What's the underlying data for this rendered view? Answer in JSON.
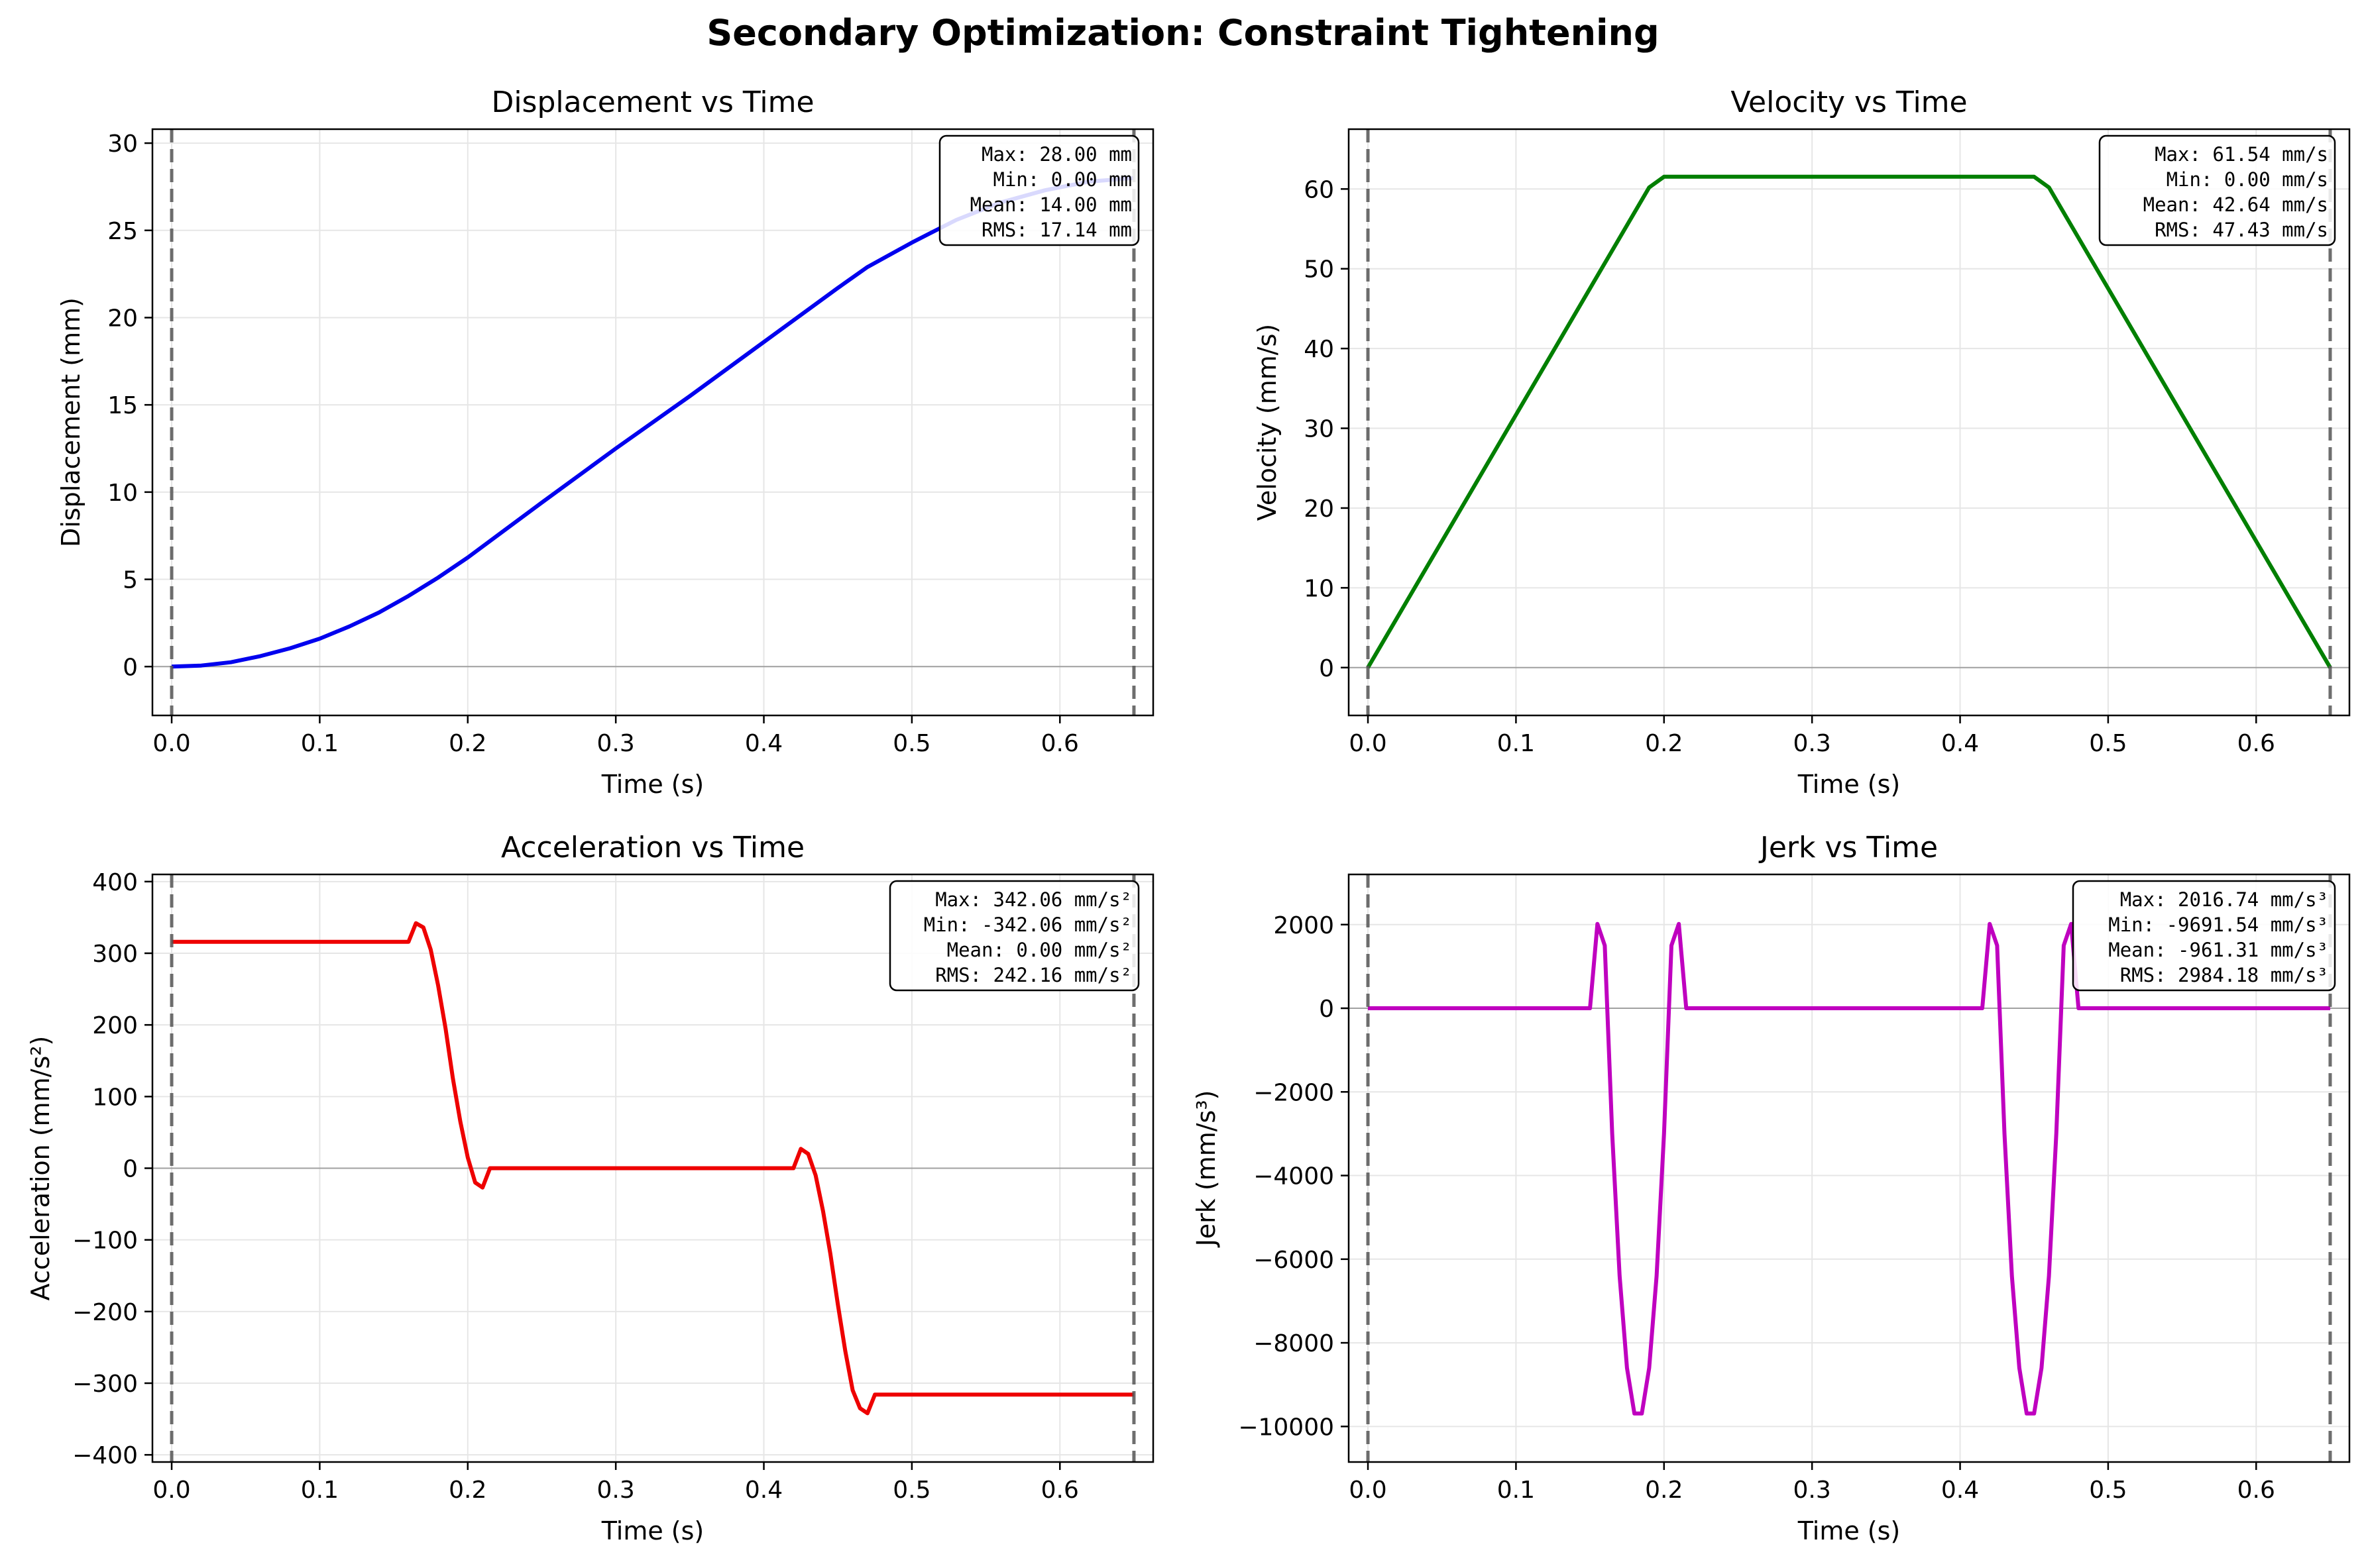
{
  "title": "Secondary Optimization: Constraint Tightening",
  "chart_data": [
    {
      "type": "line",
      "title": "Displacement vs Time",
      "xlabel": "Time (s)",
      "ylabel": "Displacement (mm)",
      "xlim": [
        -0.013,
        0.663
      ],
      "ylim": [
        -2.8,
        30.8
      ],
      "xticks": [
        0.0,
        0.1,
        0.2,
        0.3,
        0.4,
        0.5,
        0.6
      ],
      "xtick_labels": [
        "0.0",
        "0.1",
        "0.2",
        "0.3",
        "0.4",
        "0.5",
        "0.6"
      ],
      "yticks": [
        0,
        5,
        10,
        15,
        20,
        25,
        30
      ],
      "ytick_labels": [
        "0",
        "5",
        "10",
        "15",
        "20",
        "25",
        "30"
      ],
      "color": "#0000ee",
      "grid": true,
      "vlines": [
        0.0,
        0.65
      ],
      "stats": [
        "Max: 28.00 mm",
        "Min: 0.00 mm",
        "Mean: 14.00 mm",
        "RMS: 17.14 mm"
      ],
      "x": [
        0.0,
        0.02,
        0.04,
        0.06,
        0.08,
        0.1,
        0.12,
        0.14,
        0.16,
        0.18,
        0.2,
        0.25,
        0.3,
        0.35,
        0.4,
        0.45,
        0.47,
        0.5,
        0.53,
        0.56,
        0.59,
        0.62,
        0.65
      ],
      "y": [
        0.0,
        0.06,
        0.25,
        0.6,
        1.05,
        1.6,
        2.3,
        3.1,
        4.05,
        5.1,
        6.25,
        9.4,
        12.5,
        15.5,
        18.6,
        21.7,
        22.9,
        24.3,
        25.6,
        26.6,
        27.3,
        27.8,
        28.0
      ]
    },
    {
      "type": "line",
      "title": "Velocity vs Time",
      "xlabel": "Time (s)",
      "ylabel": "Velocity (mm/s)",
      "xlim": [
        -0.013,
        0.663
      ],
      "ylim": [
        -6.0,
        67.5
      ],
      "xticks": [
        0.0,
        0.1,
        0.2,
        0.3,
        0.4,
        0.5,
        0.6
      ],
      "xtick_labels": [
        "0.0",
        "0.1",
        "0.2",
        "0.3",
        "0.4",
        "0.5",
        "0.6"
      ],
      "yticks": [
        0,
        10,
        20,
        30,
        40,
        50,
        60
      ],
      "ytick_labels": [
        "0",
        "10",
        "20",
        "30",
        "40",
        "50",
        "60"
      ],
      "color": "#007f00",
      "grid": true,
      "vlines": [
        0.0,
        0.65
      ],
      "stats": [
        "Max: 61.54 mm/s",
        "Min: 0.00 mm/s",
        "Mean: 42.64 mm/s",
        "RMS: 47.43 mm/s"
      ],
      "x": [
        0.0,
        0.19,
        0.2,
        0.45,
        0.46,
        0.65
      ],
      "y": [
        0.0,
        60.2,
        61.54,
        61.54,
        60.2,
        0.0
      ]
    },
    {
      "type": "line",
      "title": "Acceleration vs Time",
      "xlabel": "Time (s)",
      "ylabel": "Acceleration (mm/s²)",
      "xlim": [
        -0.013,
        0.663
      ],
      "ylim": [
        -410,
        410
      ],
      "xticks": [
        0.0,
        0.1,
        0.2,
        0.3,
        0.4,
        0.5,
        0.6
      ],
      "xtick_labels": [
        "0.0",
        "0.1",
        "0.2",
        "0.3",
        "0.4",
        "0.5",
        "0.6"
      ],
      "yticks": [
        -400,
        -300,
        -200,
        -100,
        0,
        100,
        200,
        300,
        400
      ],
      "ytick_labels": [
        "−400",
        "−300",
        "−200",
        "−100",
        "0",
        "100",
        "200",
        "300",
        "400"
      ],
      "color": "#ee0000",
      "grid": true,
      "vlines": [
        0.0,
        0.65
      ],
      "stats": [
        "Max: 342.06 mm/s²",
        "Min: -342.06 mm/s²",
        "Mean: 0.00 mm/s²",
        "RMS: 242.16 mm/s²"
      ],
      "x": [
        0.0,
        0.16,
        0.165,
        0.17,
        0.175,
        0.18,
        0.185,
        0.19,
        0.195,
        0.2,
        0.205,
        0.21,
        0.215,
        0.22,
        0.225,
        0.23,
        0.42,
        0.425,
        0.43,
        0.435,
        0.44,
        0.445,
        0.45,
        0.455,
        0.46,
        0.465,
        0.47,
        0.475,
        0.48,
        0.485,
        0.49,
        0.65
      ],
      "y": [
        316,
        316,
        342,
        336,
        305,
        255,
        195,
        125,
        65,
        15,
        -20,
        -27,
        0,
        0,
        0,
        0,
        0,
        27,
        20,
        -10,
        -60,
        -120,
        -190,
        -255,
        -310,
        -335,
        -342,
        -316,
        -316,
        -316,
        -316,
        -316
      ]
    },
    {
      "type": "line",
      "title": "Jerk vs Time",
      "xlabel": "Time (s)",
      "ylabel": "Jerk (mm/s³)",
      "xlim": [
        -0.013,
        0.663
      ],
      "ylim": [
        -10850,
        3200
      ],
      "xticks": [
        0.0,
        0.1,
        0.2,
        0.3,
        0.4,
        0.5,
        0.6
      ],
      "xtick_labels": [
        "0.0",
        "0.1",
        "0.2",
        "0.3",
        "0.4",
        "0.5",
        "0.6"
      ],
      "yticks": [
        -10000,
        -8000,
        -6000,
        -4000,
        -2000,
        0,
        2000
      ],
      "ytick_labels": [
        "−10000",
        "−8000",
        "−6000",
        "−4000",
        "−2000",
        "0",
        "2000"
      ],
      "color": "#bf00bf",
      "grid": true,
      "vlines": [
        0.0,
        0.65
      ],
      "stats": [
        "Max: 2016.74 mm/s³",
        "Min: -9691.54 mm/s³",
        "Mean: -961.31 mm/s³",
        "RMS: 2984.18 mm/s³"
      ],
      "x": [
        0.0,
        0.15,
        0.155,
        0.16,
        0.165,
        0.17,
        0.175,
        0.18,
        0.185,
        0.19,
        0.195,
        0.2,
        0.205,
        0.21,
        0.215,
        0.22,
        0.225,
        0.23,
        0.235,
        0.415,
        0.42,
        0.425,
        0.43,
        0.435,
        0.44,
        0.445,
        0.45,
        0.455,
        0.46,
        0.465,
        0.47,
        0.475,
        0.48,
        0.485,
        0.49,
        0.495,
        0.65
      ],
      "y": [
        0,
        0,
        2016,
        1500,
        -3000,
        -6400,
        -8600,
        -9690,
        -9690,
        -8600,
        -6400,
        -3000,
        1500,
        2016,
        0,
        0,
        0,
        0,
        0,
        0,
        2016,
        1500,
        -3000,
        -6400,
        -8600,
        -9690,
        -9690,
        -8600,
        -6400,
        -3000,
        1500,
        2016,
        0,
        0,
        0,
        0,
        0
      ]
    }
  ]
}
